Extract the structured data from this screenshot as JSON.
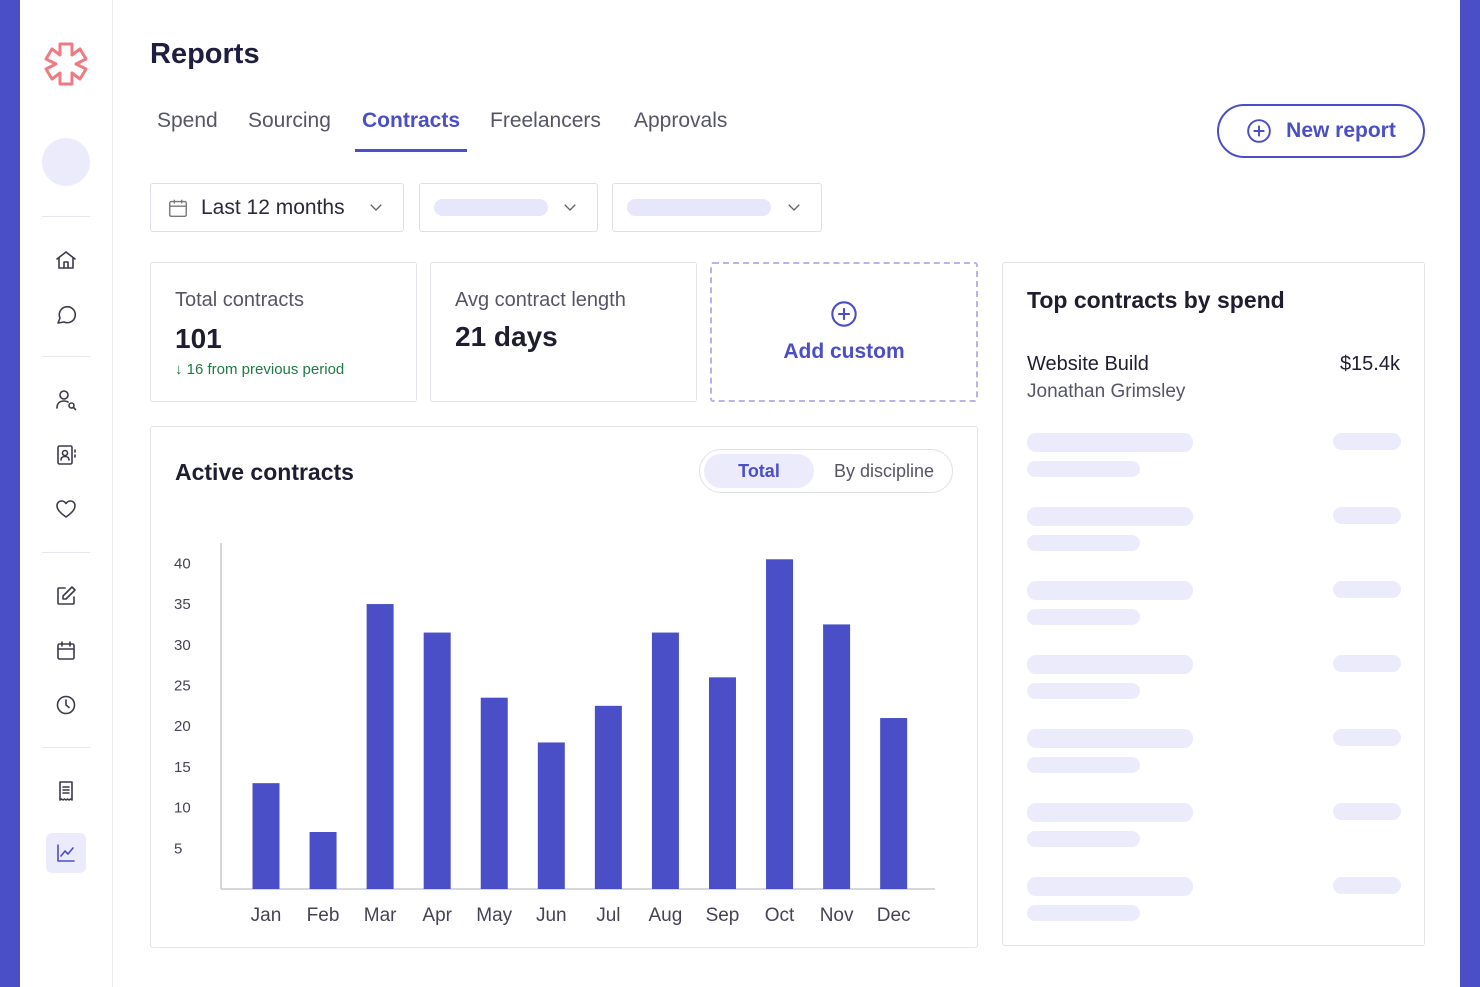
{
  "page": {
    "title": "Reports"
  },
  "tabs": [
    {
      "label": "Spend"
    },
    {
      "label": "Sourcing"
    },
    {
      "label": "Contracts",
      "active": true
    },
    {
      "label": "Freelancers"
    },
    {
      "label": "Approvals"
    }
  ],
  "actions": {
    "new_report": "New report"
  },
  "filters": {
    "date_range": "Last 12 months"
  },
  "stats": {
    "total_contracts": {
      "label": "Total contracts",
      "value": "101",
      "delta": "↓ 16 from previous period"
    },
    "avg_length": {
      "label": "Avg contract length",
      "value": "21 days"
    },
    "add_custom": "Add custom"
  },
  "active_contracts": {
    "title": "Active contracts",
    "toggle": {
      "total": "Total",
      "by_discipline": "By discipline"
    }
  },
  "top_contracts": {
    "title": "Top contracts by spend",
    "first": {
      "name": "Website Build",
      "client": "Jonathan Grimsley",
      "amount": "$15.4k"
    }
  },
  "colors": {
    "accent": "#4a4fc7",
    "positive": "#1f7a44",
    "placeholder": "#ecebfb"
  },
  "sidebar_icons": [
    "home-icon",
    "chat-icon",
    "user-search-icon",
    "contacts-icon",
    "heart-icon",
    "edit-icon",
    "calendar-icon",
    "clock-icon",
    "receipt-icon",
    "chart-icon"
  ],
  "chart_data": {
    "type": "bar",
    "categories": [
      "Jan",
      "Feb",
      "Mar",
      "Apr",
      "May",
      "Jun",
      "Jul",
      "Aug",
      "Sep",
      "Oct",
      "Nov",
      "Dec"
    ],
    "values": [
      13,
      7,
      35,
      31.5,
      23.5,
      18,
      22.5,
      31.5,
      26,
      40.5,
      32.5,
      21
    ],
    "title": "Active contracts",
    "xlabel": "",
    "ylabel": "",
    "yticks": [
      5,
      10,
      15,
      20,
      25,
      30,
      35,
      40
    ],
    "ylim": [
      0,
      42.5
    ],
    "grid": false
  }
}
